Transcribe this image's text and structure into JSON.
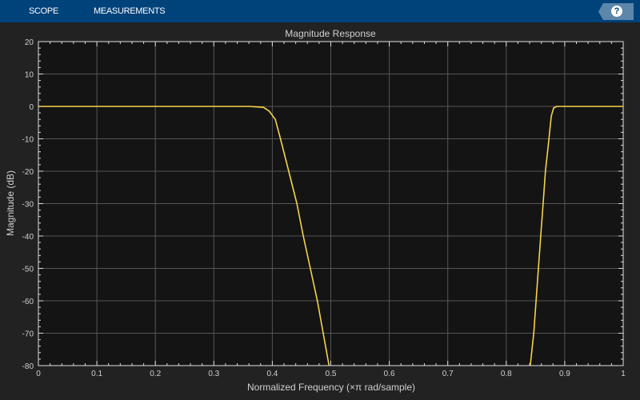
{
  "toolbar": {
    "tabs": [
      "SCOPE",
      "MEASUREMENTS"
    ],
    "help_label": "?"
  },
  "colors": {
    "toolbar": "#00427a",
    "background": "#222222",
    "plot_background": "#141414",
    "grid": "#555555",
    "line": "#f5d34a"
  },
  "chart_data": {
    "type": "line",
    "title": "Magnitude Response",
    "xlabel": "Normalized Frequency (×π rad/sample)",
    "ylabel": "Magnitude (dB)",
    "xlim": [
      0,
      1
    ],
    "ylim": [
      -80,
      20
    ],
    "xticks": [
      "0",
      "0.1",
      "0.2",
      "0.3",
      "0.4",
      "0.5",
      "0.6",
      "0.7",
      "0.8",
      "0.9",
      "1"
    ],
    "yticks": [
      "20",
      "10",
      "0",
      "-10",
      "-20",
      "-30",
      "-40",
      "-50",
      "-60",
      "-70",
      "-80"
    ],
    "grid": true,
    "series": [
      {
        "x": [
          0,
          0.36,
          0.385,
          0.395,
          0.405,
          0.414,
          0.428,
          0.442,
          0.453,
          0.465,
          0.477,
          0.487,
          0.497
        ],
        "y": [
          0,
          0,
          -0.3,
          -1.5,
          -4,
          -10,
          -20,
          -30,
          -40,
          -50,
          -60,
          -70,
          -80
        ]
      },
      {
        "x": [
          0.841,
          0.847,
          0.851,
          0.855,
          0.859,
          0.863,
          0.867,
          0.873,
          0.877,
          0.881,
          0.886,
          1
        ],
        "y": [
          -80,
          -70,
          -60,
          -50,
          -40,
          -30,
          -20,
          -10,
          -3,
          -0.5,
          0,
          0
        ]
      }
    ]
  }
}
